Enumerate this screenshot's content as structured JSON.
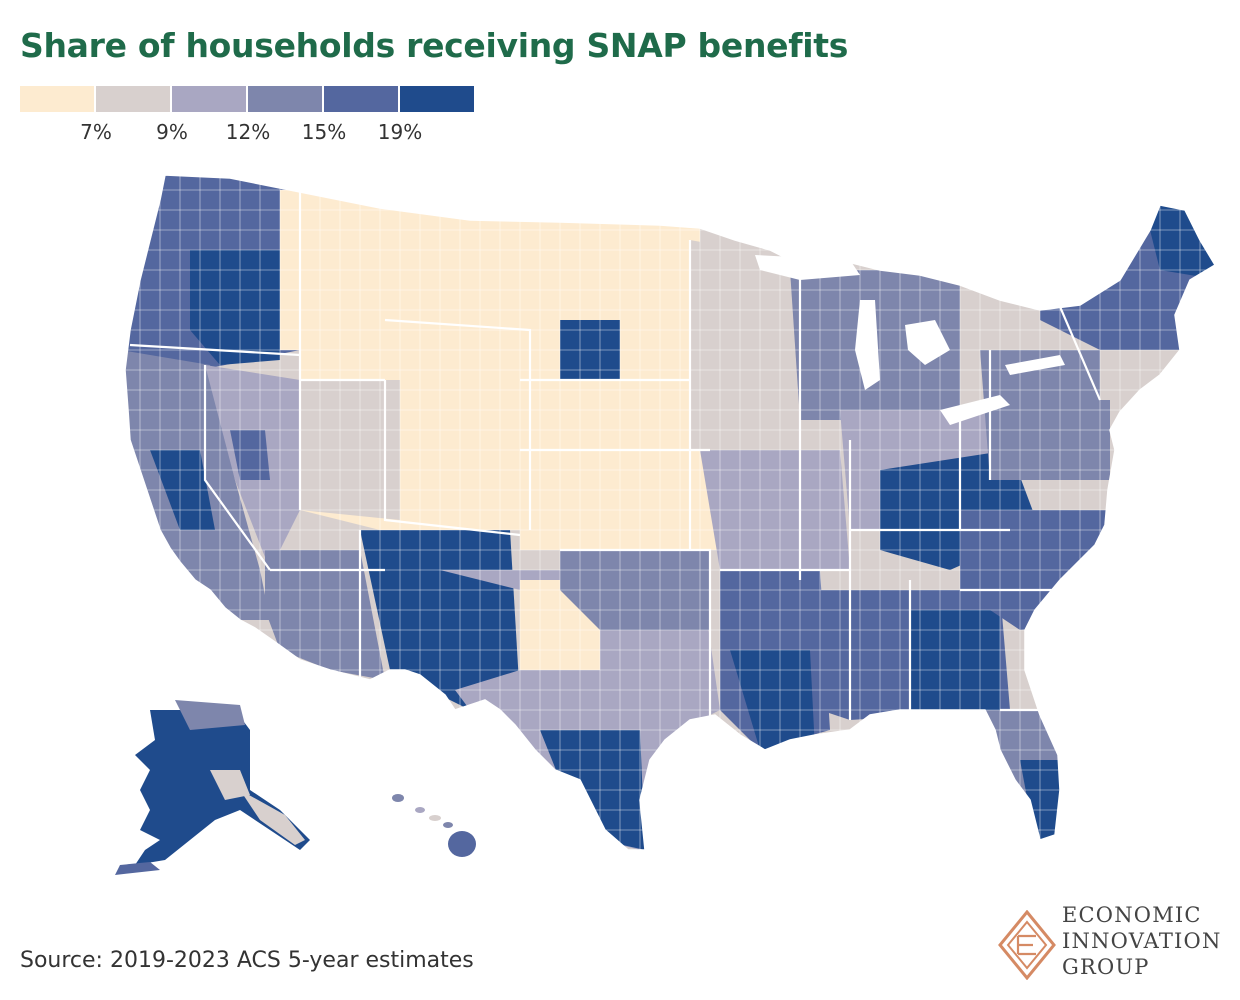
{
  "title": "Share of households receiving SNAP benefits",
  "legend": {
    "bins": [
      {
        "color": "#fdebd0"
      },
      {
        "color": "#d8d0ce"
      },
      {
        "color": "#a9a7c2"
      },
      {
        "color": "#7e86ac"
      },
      {
        "color": "#54679f"
      },
      {
        "color": "#1f4b8c"
      }
    ],
    "ticks": [
      "7%",
      "9%",
      "12%",
      "15%",
      "19%"
    ]
  },
  "source": "Source: 2019-2023 ACS 5-year estimates",
  "logo": {
    "lines": [
      "ECONOMIC",
      "INNOVATION",
      "GROUP"
    ],
    "accent_color": "#d58a64"
  },
  "map": {
    "description_regions": [
      {
        "name": "Pacific Northwest",
        "class_index": 4
      },
      {
        "name": "Oregon interior",
        "class_index": 5
      },
      {
        "name": "California north",
        "class_index": 3
      },
      {
        "name": "California central valley",
        "class_index": 5
      },
      {
        "name": "Nevada",
        "class_index": 2
      },
      {
        "name": "Idaho & Montana",
        "class_index": 0
      },
      {
        "name": "Wyoming",
        "class_index": 0
      },
      {
        "name": "Utah",
        "class_index": 1
      },
      {
        "name": "Colorado east",
        "class_index": 0
      },
      {
        "name": "Arizona",
        "class_index": 3
      },
      {
        "name": "New Mexico",
        "class_index": 5
      },
      {
        "name": "Dakotas",
        "class_index": 0
      },
      {
        "name": "Nebraska & Kansas",
        "class_index": 0
      },
      {
        "name": "Oklahoma",
        "class_index": 3
      },
      {
        "name": "Texas north",
        "class_index": 2
      },
      {
        "name": "Texas south border",
        "class_index": 5
      },
      {
        "name": "Minnesota & Iowa",
        "class_index": 1
      },
      {
        "name": "Wisconsin & Illinois",
        "class_index": 2
      },
      {
        "name": "Michigan",
        "class_index": 3
      },
      {
        "name": "Indiana & Ohio",
        "class_index": 2
      },
      {
        "name": "Appalachia",
        "class_index": 5
      },
      {
        "name": "Mississippi delta",
        "class_index": 5
      },
      {
        "name": "Louisiana",
        "class_index": 5
      },
      {
        "name": "Georgia",
        "class_index": 5
      },
      {
        "name": "Carolinas",
        "class_index": 4
      },
      {
        "name": "Florida",
        "class_index": 3
      },
      {
        "name": "Mid-Atlantic",
        "class_index": 2
      },
      {
        "name": "New England",
        "class_index": 3
      },
      {
        "name": "Maine north",
        "class_index": 5
      },
      {
        "name": "Alaska",
        "class_index": 5
      },
      {
        "name": "Hawaii",
        "class_index": 4
      }
    ]
  }
}
